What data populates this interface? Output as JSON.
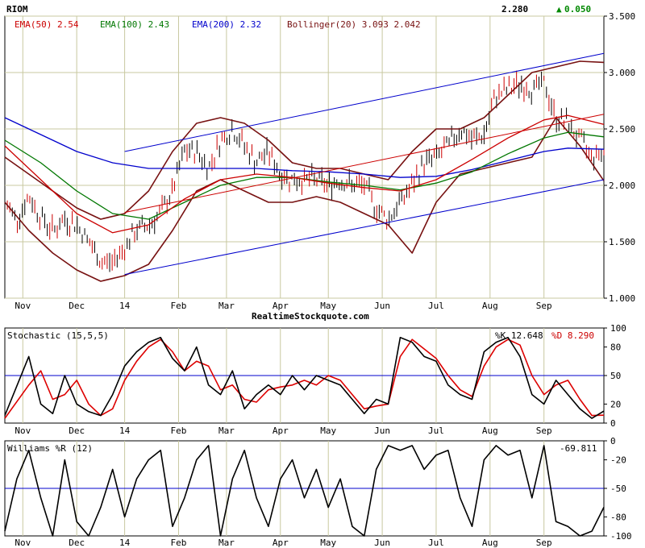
{
  "chart_data": [
    {
      "type": "line",
      "panel": "price",
      "symbol": "RIOM",
      "last_price": "2.280",
      "change": "0.050",
      "change_arrow": "▲",
      "watermark": "RealtimeStockquote.com",
      "y_ticks": [
        "3.500",
        "3.000",
        "2.500",
        "2.000",
        "1.500",
        "1.000"
      ],
      "ylim": [
        1.0,
        3.5
      ],
      "x_labels": [
        "Nov",
        "Dec",
        "14",
        "Feb",
        "Mar",
        "Apr",
        "May",
        "Jun",
        "Jul",
        "Aug",
        "Sep"
      ],
      "x_label_positions": [
        1.5,
        6,
        10,
        14.5,
        18.5,
        23,
        27,
        31.5,
        36,
        40.5,
        45
      ],
      "x_range": [
        0,
        50
      ],
      "grid": true,
      "colors": {
        "ema50": "#cc0000",
        "ema100": "#007700",
        "ema200": "#0000cc",
        "bollinger": "#771111",
        "bars": "#000000",
        "channel": "#0000cc",
        "trend": "#cc0000",
        "up": "#008800"
      },
      "legend": [
        {
          "label": "EMA(50) 2.54",
          "color": "#cc0000"
        },
        {
          "label": "EMA(100) 2.43",
          "color": "#007700"
        },
        {
          "label": "EMA(200) 2.32",
          "color": "#0000cc"
        },
        {
          "label": "Bollinger(20) 3.093 2.042",
          "color": "#771111"
        }
      ],
      "price_anchors": [
        [
          0,
          1.85
        ],
        [
          1,
          1.7
        ],
        [
          2,
          1.9
        ],
        [
          3,
          1.72
        ],
        [
          4,
          1.6
        ],
        [
          5,
          1.7
        ],
        [
          6,
          1.65
        ],
        [
          7,
          1.5
        ],
        [
          8,
          1.32
        ],
        [
          9,
          1.32
        ],
        [
          10,
          1.45
        ],
        [
          11,
          1.6
        ],
        [
          12,
          1.65
        ],
        [
          13,
          1.75
        ],
        [
          14,
          1.95
        ],
        [
          15,
          2.3
        ],
        [
          16,
          2.3
        ],
        [
          17,
          2.15
        ],
        [
          18,
          2.4
        ],
        [
          19,
          2.5
        ],
        [
          20,
          2.35
        ],
        [
          21,
          2.2
        ],
        [
          22,
          2.3
        ],
        [
          23,
          2.1
        ],
        [
          24,
          2.05
        ],
        [
          25,
          2.05
        ],
        [
          26,
          2.05
        ],
        [
          27,
          2.0
        ],
        [
          28,
          2.05
        ],
        [
          29,
          2.0
        ],
        [
          30,
          2.0
        ],
        [
          31,
          1.8
        ],
        [
          32,
          1.7
        ],
        [
          33,
          1.85
        ],
        [
          34,
          2.0
        ],
        [
          35,
          2.2
        ],
        [
          36,
          2.25
        ],
        [
          37,
          2.35
        ],
        [
          38,
          2.5
        ],
        [
          39,
          2.4
        ],
        [
          40,
          2.45
        ],
        [
          41,
          2.8
        ],
        [
          42,
          2.85
        ],
        [
          43,
          2.9
        ],
        [
          44,
          2.85
        ],
        [
          45,
          2.9
        ],
        [
          46,
          2.6
        ],
        [
          47,
          2.55
        ],
        [
          48,
          2.4
        ],
        [
          49,
          2.25
        ],
        [
          50,
          2.3
        ]
      ],
      "ema50": [
        [
          0,
          2.35
        ],
        [
          3,
          2.05
        ],
        [
          6,
          1.75
        ],
        [
          9,
          1.58
        ],
        [
          12,
          1.65
        ],
        [
          15,
          1.88
        ],
        [
          18,
          2.05
        ],
        [
          21,
          2.1
        ],
        [
          24,
          2.07
        ],
        [
          27,
          2.02
        ],
        [
          30,
          1.98
        ],
        [
          33,
          1.95
        ],
        [
          36,
          2.05
        ],
        [
          39,
          2.23
        ],
        [
          42,
          2.42
        ],
        [
          45,
          2.58
        ],
        [
          47,
          2.62
        ],
        [
          50,
          2.54
        ]
      ],
      "ema100": [
        [
          0,
          2.4
        ],
        [
          3,
          2.2
        ],
        [
          6,
          1.95
        ],
        [
          9,
          1.75
        ],
        [
          12,
          1.7
        ],
        [
          15,
          1.85
        ],
        [
          18,
          2.0
        ],
        [
          21,
          2.07
        ],
        [
          24,
          2.07
        ],
        [
          27,
          2.03
        ],
        [
          30,
          2.0
        ],
        [
          33,
          1.96
        ],
        [
          36,
          2.02
        ],
        [
          39,
          2.12
        ],
        [
          42,
          2.28
        ],
        [
          45,
          2.42
        ],
        [
          47,
          2.47
        ],
        [
          50,
          2.43
        ]
      ],
      "ema200": [
        [
          0,
          2.6
        ],
        [
          3,
          2.45
        ],
        [
          6,
          2.3
        ],
        [
          9,
          2.2
        ],
        [
          12,
          2.15
        ],
        [
          15,
          2.15
        ],
        [
          18,
          2.15
        ],
        [
          21,
          2.15
        ],
        [
          24,
          2.13
        ],
        [
          27,
          2.12
        ],
        [
          30,
          2.1
        ],
        [
          33,
          2.07
        ],
        [
          36,
          2.08
        ],
        [
          39,
          2.14
        ],
        [
          42,
          2.22
        ],
        [
          45,
          2.3
        ],
        [
          47,
          2.33
        ],
        [
          50,
          2.32
        ]
      ],
      "bb_upper": [
        [
          0,
          2.25
        ],
        [
          2,
          2.1
        ],
        [
          4,
          1.95
        ],
        [
          6,
          1.8
        ],
        [
          8,
          1.7
        ],
        [
          10,
          1.75
        ],
        [
          12,
          1.95
        ],
        [
          14,
          2.3
        ],
        [
          16,
          2.55
        ],
        [
          18,
          2.6
        ],
        [
          20,
          2.55
        ],
        [
          22,
          2.4
        ],
        [
          24,
          2.2
        ],
        [
          26,
          2.15
        ],
        [
          28,
          2.15
        ],
        [
          30,
          2.1
        ],
        [
          32,
          2.05
        ],
        [
          34,
          2.3
        ],
        [
          36,
          2.5
        ],
        [
          38,
          2.5
        ],
        [
          40,
          2.6
        ],
        [
          42,
          2.8
        ],
        [
          44,
          3.0
        ],
        [
          46,
          3.05
        ],
        [
          48,
          3.1
        ],
        [
          50,
          3.09
        ]
      ],
      "bb_lower": [
        [
          0,
          1.85
        ],
        [
          2,
          1.6
        ],
        [
          4,
          1.4
        ],
        [
          6,
          1.25
        ],
        [
          8,
          1.15
        ],
        [
          10,
          1.2
        ],
        [
          12,
          1.3
        ],
        [
          14,
          1.6
        ],
        [
          16,
          1.95
        ],
        [
          18,
          2.05
        ],
        [
          20,
          1.95
        ],
        [
          22,
          1.85
        ],
        [
          24,
          1.85
        ],
        [
          26,
          1.9
        ],
        [
          28,
          1.85
        ],
        [
          30,
          1.75
        ],
        [
          32,
          1.65
        ],
        [
          34,
          1.4
        ],
        [
          36,
          1.85
        ],
        [
          38,
          2.1
        ],
        [
          40,
          2.15
        ],
        [
          42,
          2.2
        ],
        [
          44,
          2.25
        ],
        [
          46,
          2.6
        ],
        [
          48,
          2.35
        ],
        [
          50,
          2.04
        ]
      ],
      "channel_lines": [
        [
          [
            10,
            2.3
          ],
          [
            50,
            3.17
          ]
        ],
        [
          [
            10,
            1.21
          ],
          [
            50,
            2.05
          ]
        ]
      ],
      "trend_line": [
        [
          10,
          1.76
        ],
        [
          50,
          2.63
        ]
      ]
    },
    {
      "type": "line",
      "panel": "stochastic",
      "title": "Stochastic (15,5,5)",
      "k_label": "%K 12.648",
      "d_label": "%D 8.290",
      "y_ticks": [
        "100",
        "80",
        "50",
        "20",
        "0"
      ],
      "ylim": [
        0,
        100
      ],
      "reference_line": 50,
      "k": [
        [
          0,
          8
        ],
        [
          2,
          70
        ],
        [
          3,
          20
        ],
        [
          4,
          10
        ],
        [
          5,
          50
        ],
        [
          6,
          20
        ],
        [
          7,
          12
        ],
        [
          8,
          8
        ],
        [
          9,
          30
        ],
        [
          10,
          60
        ],
        [
          11,
          75
        ],
        [
          12,
          85
        ],
        [
          13,
          90
        ],
        [
          14,
          68
        ],
        [
          15,
          55
        ],
        [
          16,
          80
        ],
        [
          17,
          40
        ],
        [
          18,
          30
        ],
        [
          19,
          55
        ],
        [
          20,
          15
        ],
        [
          21,
          30
        ],
        [
          22,
          40
        ],
        [
          23,
          30
        ],
        [
          24,
          50
        ],
        [
          25,
          35
        ],
        [
          26,
          50
        ],
        [
          27,
          45
        ],
        [
          28,
          40
        ],
        [
          29,
          25
        ],
        [
          30,
          10
        ],
        [
          31,
          25
        ],
        [
          32,
          20
        ],
        [
          33,
          90
        ],
        [
          34,
          85
        ],
        [
          35,
          70
        ],
        [
          36,
          65
        ],
        [
          37,
          40
        ],
        [
          38,
          30
        ],
        [
          39,
          25
        ],
        [
          40,
          75
        ],
        [
          41,
          85
        ],
        [
          42,
          90
        ],
        [
          43,
          70
        ],
        [
          44,
          30
        ],
        [
          45,
          20
        ],
        [
          46,
          45
        ],
        [
          47,
          30
        ],
        [
          48,
          15
        ],
        [
          49,
          5
        ],
        [
          50,
          12.6
        ]
      ],
      "d": [
        [
          0,
          5
        ],
        [
          2,
          40
        ],
        [
          3,
          55
        ],
        [
          4,
          25
        ],
        [
          5,
          30
        ],
        [
          6,
          45
        ],
        [
          7,
          20
        ],
        [
          8,
          8
        ],
        [
          9,
          15
        ],
        [
          10,
          45
        ],
        [
          11,
          65
        ],
        [
          12,
          80
        ],
        [
          13,
          88
        ],
        [
          14,
          75
        ],
        [
          15,
          55
        ],
        [
          16,
          65
        ],
        [
          17,
          60
        ],
        [
          18,
          35
        ],
        [
          19,
          40
        ],
        [
          20,
          25
        ],
        [
          21,
          22
        ],
        [
          22,
          35
        ],
        [
          23,
          38
        ],
        [
          24,
          40
        ],
        [
          25,
          45
        ],
        [
          26,
          40
        ],
        [
          27,
          50
        ],
        [
          28,
          45
        ],
        [
          29,
          30
        ],
        [
          30,
          15
        ],
        [
          31,
          18
        ],
        [
          32,
          20
        ],
        [
          33,
          70
        ],
        [
          34,
          88
        ],
        [
          35,
          78
        ],
        [
          36,
          68
        ],
        [
          37,
          50
        ],
        [
          38,
          35
        ],
        [
          39,
          28
        ],
        [
          40,
          60
        ],
        [
          41,
          80
        ],
        [
          42,
          88
        ],
        [
          43,
          82
        ],
        [
          44,
          50
        ],
        [
          45,
          30
        ],
        [
          46,
          40
        ],
        [
          47,
          45
        ],
        [
          48,
          25
        ],
        [
          49,
          8
        ],
        [
          50,
          8.3
        ]
      ]
    },
    {
      "type": "line",
      "panel": "williams",
      "title": "Williams %R (12)",
      "value_label": "-69.811",
      "y_ticks": [
        "0",
        "-20",
        "-50",
        "-80",
        "-100"
      ],
      "ylim": [
        -100,
        0
      ],
      "reference_line": -50,
      "values": [
        [
          0,
          -95
        ],
        [
          1,
          -40
        ],
        [
          2,
          -10
        ],
        [
          3,
          -60
        ],
        [
          4,
          -100
        ],
        [
          5,
          -20
        ],
        [
          6,
          -85
        ],
        [
          7,
          -100
        ],
        [
          8,
          -70
        ],
        [
          9,
          -30
        ],
        [
          10,
          -80
        ],
        [
          11,
          -40
        ],
        [
          12,
          -20
        ],
        [
          13,
          -10
        ],
        [
          14,
          -90
        ],
        [
          15,
          -60
        ],
        [
          16,
          -20
        ],
        [
          17,
          -5
        ],
        [
          18,
          -100
        ],
        [
          19,
          -40
        ],
        [
          20,
          -10
        ],
        [
          21,
          -60
        ],
        [
          22,
          -90
        ],
        [
          23,
          -40
        ],
        [
          24,
          -20
        ],
        [
          25,
          -60
        ],
        [
          26,
          -30
        ],
        [
          27,
          -70
        ],
        [
          28,
          -40
        ],
        [
          29,
          -90
        ],
        [
          30,
          -100
        ],
        [
          31,
          -30
        ],
        [
          32,
          -5
        ],
        [
          33,
          -10
        ],
        [
          34,
          -5
        ],
        [
          35,
          -30
        ],
        [
          36,
          -15
        ],
        [
          37,
          -10
        ],
        [
          38,
          -60
        ],
        [
          39,
          -90
        ],
        [
          40,
          -20
        ],
        [
          41,
          -5
        ],
        [
          42,
          -15
        ],
        [
          43,
          -10
        ],
        [
          44,
          -60
        ],
        [
          45,
          -5
        ],
        [
          46,
          -85
        ],
        [
          47,
          -90
        ],
        [
          48,
          -100
        ],
        [
          49,
          -95
        ],
        [
          50,
          -69.8
        ]
      ]
    }
  ]
}
